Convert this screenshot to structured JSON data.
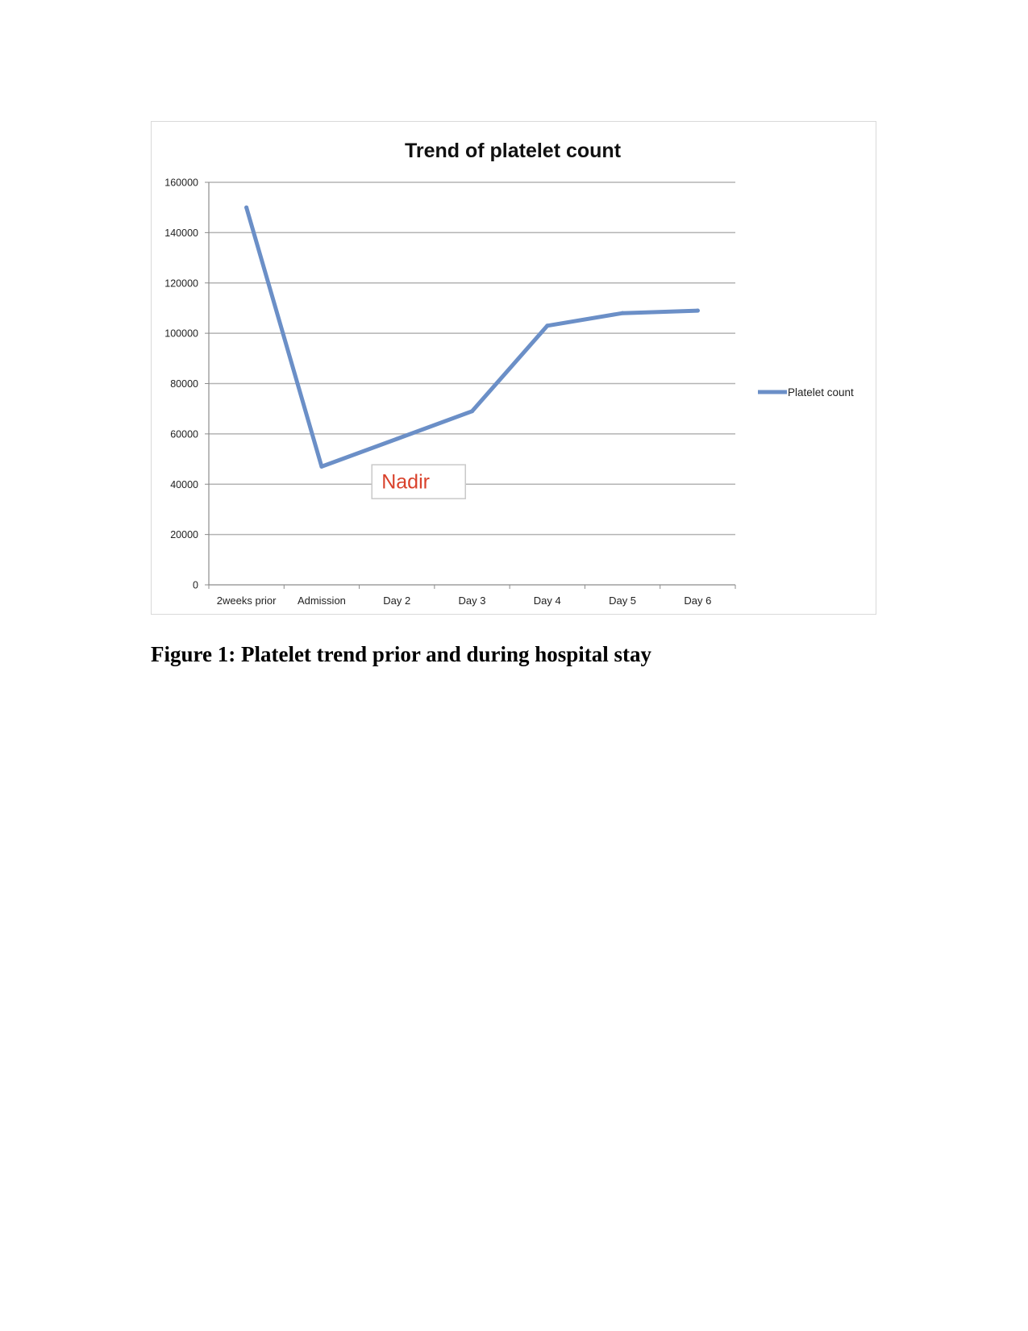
{
  "figure": {
    "caption": "Figure 1: Platelet trend prior and during hospital stay"
  },
  "chart_data": {
    "type": "line",
    "title": "Trend of platelet count",
    "xlabel": "",
    "ylabel": "",
    "categories": [
      "2weeks prior",
      "Admission",
      "Day 2",
      "Day 3",
      "Day 4",
      "Day 5",
      "Day 6"
    ],
    "series": [
      {
        "name": "Platelet count",
        "values": [
          150000,
          47000,
          58000,
          69000,
          103000,
          108000,
          109000
        ],
        "color": "#6b8fc7"
      }
    ],
    "ylim": [
      0,
      160000
    ],
    "yticks": [
      0,
      20000,
      40000,
      60000,
      80000,
      100000,
      120000,
      140000,
      160000
    ],
    "grid": true,
    "legend": "right",
    "annotations": [
      {
        "text": "Nadir",
        "color": "#d9412b",
        "category": "Day 2",
        "y": 41000
      }
    ]
  }
}
